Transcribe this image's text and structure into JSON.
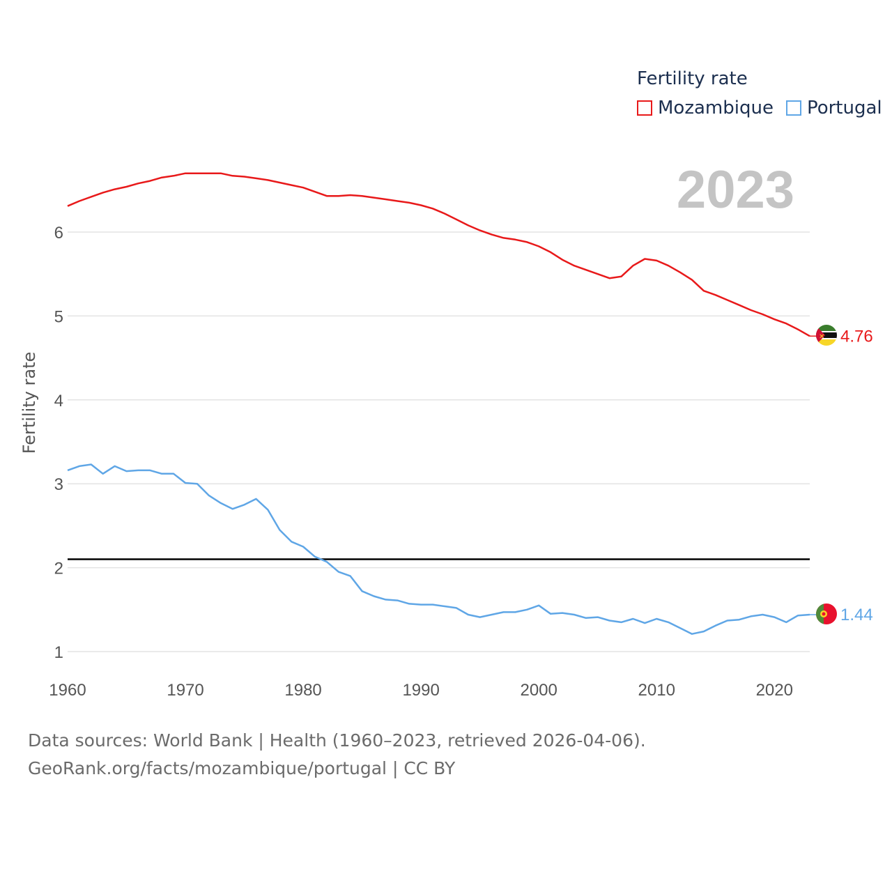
{
  "chart_data": {
    "type": "line",
    "title": "",
    "legend_title": "Fertility rate",
    "year_label": "2023",
    "xlabel": "",
    "ylabel": "Fertility rate",
    "xlim": [
      1960,
      2023
    ],
    "ylim": [
      0.75,
      7.0
    ],
    "x_ticks": [
      1960,
      1970,
      1980,
      1990,
      2000,
      2010,
      2020
    ],
    "y_ticks": [
      1,
      2,
      3,
      4,
      5,
      6
    ],
    "reference_line": 2.1,
    "x": [
      1960,
      1961,
      1962,
      1963,
      1964,
      1965,
      1966,
      1967,
      1968,
      1969,
      1970,
      1971,
      1972,
      1973,
      1974,
      1975,
      1976,
      1977,
      1978,
      1979,
      1980,
      1981,
      1982,
      1983,
      1984,
      1985,
      1986,
      1987,
      1988,
      1989,
      1990,
      1991,
      1992,
      1993,
      1994,
      1995,
      1996,
      1997,
      1998,
      1999,
      2000,
      2001,
      2002,
      2003,
      2004,
      2005,
      2006,
      2007,
      2008,
      2009,
      2010,
      2011,
      2012,
      2013,
      2014,
      2015,
      2016,
      2017,
      2018,
      2019,
      2020,
      2021,
      2022,
      2023
    ],
    "series": [
      {
        "name": "Mozambique",
        "color": "#e8191a",
        "end_label": "4.76",
        "values": [
          6.31,
          6.37,
          6.42,
          6.47,
          6.51,
          6.54,
          6.58,
          6.61,
          6.65,
          6.67,
          6.7,
          6.7,
          6.7,
          6.7,
          6.67,
          6.66,
          6.64,
          6.62,
          6.59,
          6.56,
          6.53,
          6.48,
          6.43,
          6.43,
          6.44,
          6.43,
          6.41,
          6.39,
          6.37,
          6.35,
          6.32,
          6.28,
          6.22,
          6.15,
          6.08,
          6.02,
          5.97,
          5.93,
          5.91,
          5.88,
          5.83,
          5.76,
          5.67,
          5.6,
          5.55,
          5.5,
          5.45,
          5.47,
          5.6,
          5.68,
          5.66,
          5.6,
          5.52,
          5.43,
          5.3,
          5.25,
          5.19,
          5.13,
          5.07,
          5.02,
          4.96,
          4.91,
          4.84,
          4.76
        ]
      },
      {
        "name": "Portugal",
        "color": "#5fa6e6",
        "end_label": "1.44",
        "values": [
          3.16,
          3.21,
          3.23,
          3.12,
          3.21,
          3.15,
          3.16,
          3.16,
          3.12,
          3.12,
          3.01,
          3.0,
          2.86,
          2.77,
          2.7,
          2.75,
          2.82,
          2.69,
          2.45,
          2.31,
          2.25,
          2.13,
          2.07,
          1.95,
          1.9,
          1.72,
          1.66,
          1.62,
          1.61,
          1.57,
          1.56,
          1.56,
          1.54,
          1.52,
          1.44,
          1.41,
          1.44,
          1.47,
          1.47,
          1.5,
          1.55,
          1.45,
          1.46,
          1.44,
          1.4,
          1.41,
          1.37,
          1.35,
          1.39,
          1.34,
          1.39,
          1.35,
          1.28,
          1.21,
          1.24,
          1.31,
          1.37,
          1.38,
          1.42,
          1.44,
          1.41,
          1.35,
          1.43,
          1.44
        ]
      }
    ]
  },
  "footer": {
    "line1": "Data sources: World Bank | Health (1960–2023, retrieved 2026-04-06).",
    "line2": "GeoRank.org/facts/mozambique/portugal | CC BY"
  }
}
